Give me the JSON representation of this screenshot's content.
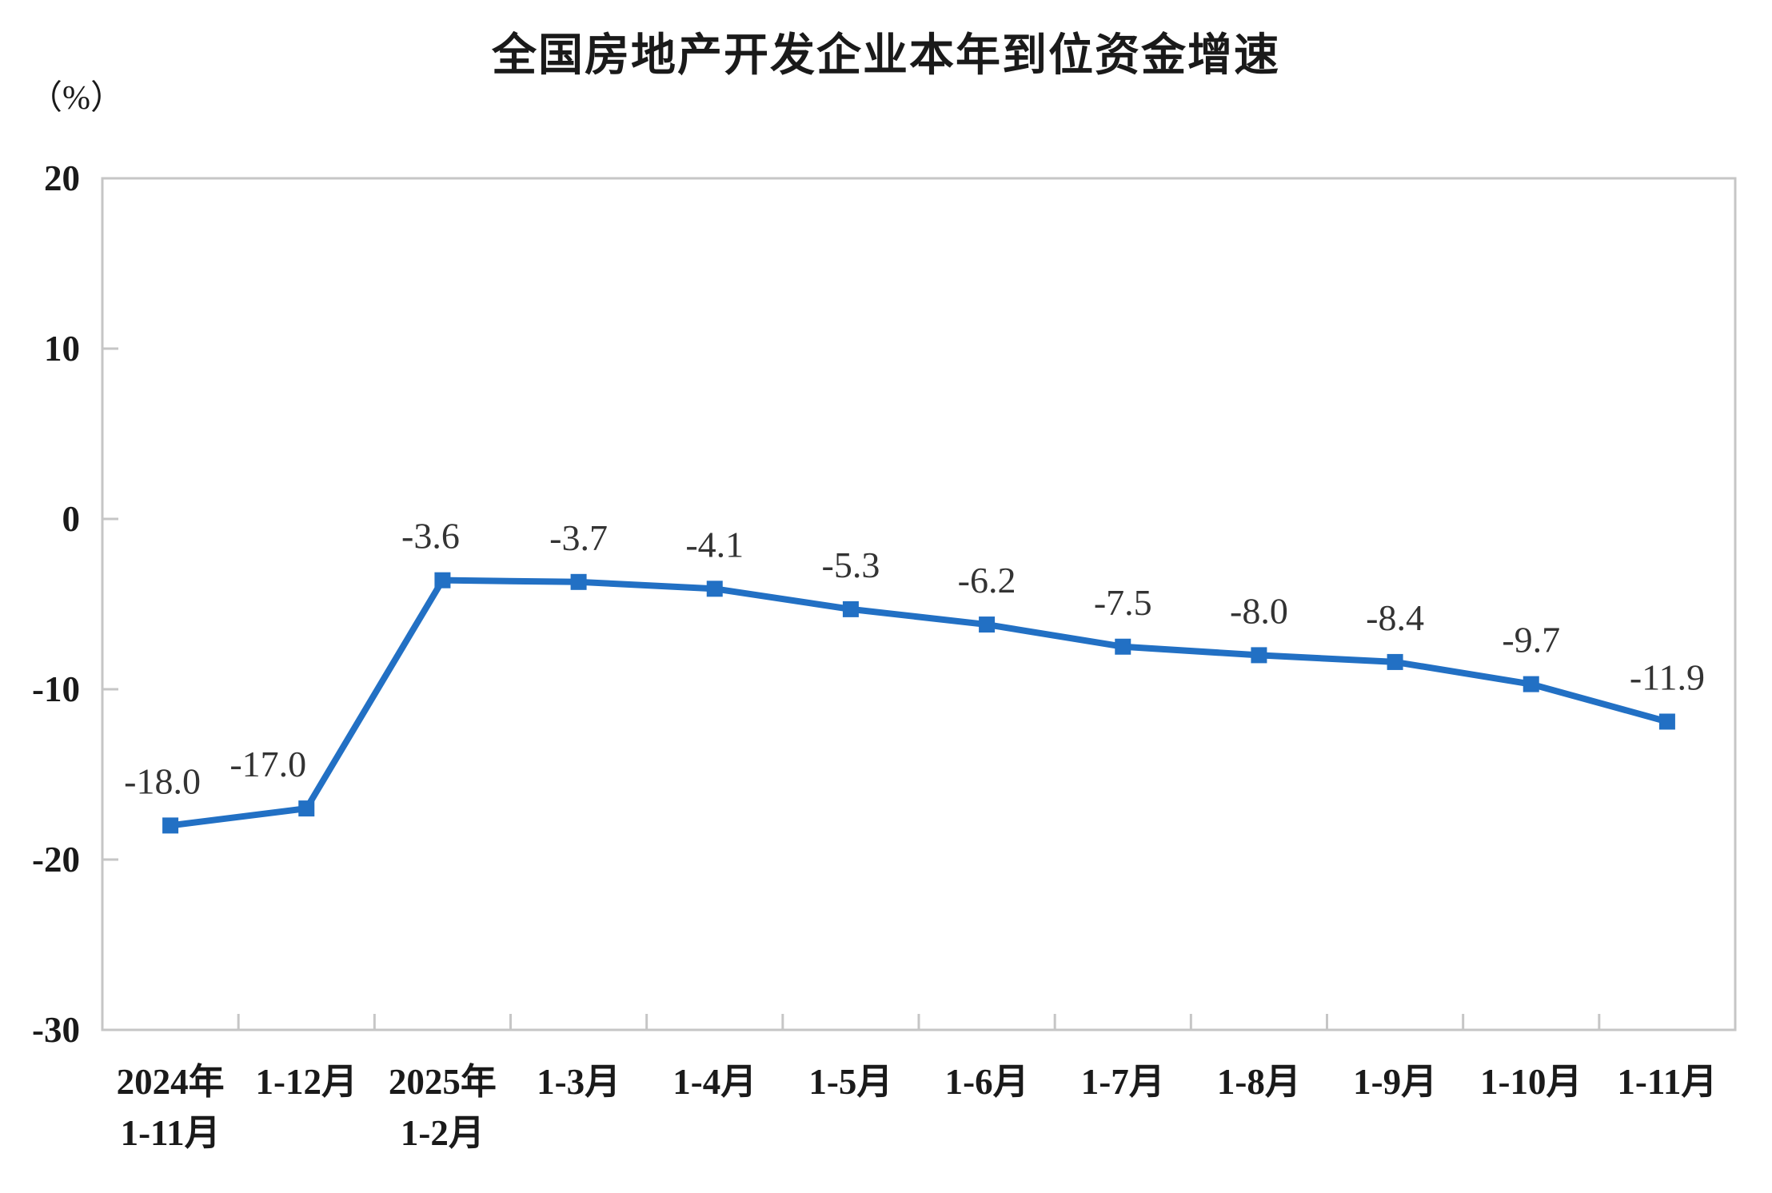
{
  "chart_data": {
    "type": "line",
    "title": "全国房地产开发企业本年到位资金增速",
    "unit_label": "（%）",
    "categories": [
      [
        "2024年",
        "1-11月"
      ],
      [
        "1-12月"
      ],
      [
        "2025年",
        "1-2月"
      ],
      [
        "1-3月"
      ],
      [
        "1-4月"
      ],
      [
        "1-5月"
      ],
      [
        "1-6月"
      ],
      [
        "1-7月"
      ],
      [
        "1-8月"
      ],
      [
        "1-9月"
      ],
      [
        "1-10月"
      ],
      [
        "1-11月"
      ]
    ],
    "values": [
      -18.0,
      -17.0,
      -3.6,
      -3.7,
      -4.1,
      -5.3,
      -6.2,
      -7.5,
      -8.0,
      -8.4,
      -9.7,
      -11.9
    ],
    "point_labels": [
      "-18.0",
      "-17.0",
      "-3.6",
      "-3.7",
      "-4.1",
      "-5.3",
      "-6.2",
      "-7.5",
      "-8.0",
      "-8.4",
      "-9.7",
      "-11.9"
    ],
    "ylim": [
      -30,
      20
    ],
    "yticks": [
      20,
      10,
      0,
      -10,
      -20,
      -30
    ],
    "grid": false,
    "legend": "none",
    "marker": "square",
    "line_color": "#2270C4",
    "frame_color": "#C6C6C6",
    "axis_text_color": "#1a1a1a",
    "label_color": "#333333",
    "label_dx": [
      -10,
      -48,
      -15,
      0,
      0,
      0,
      0,
      0,
      0,
      0,
      0,
      0
    ]
  }
}
